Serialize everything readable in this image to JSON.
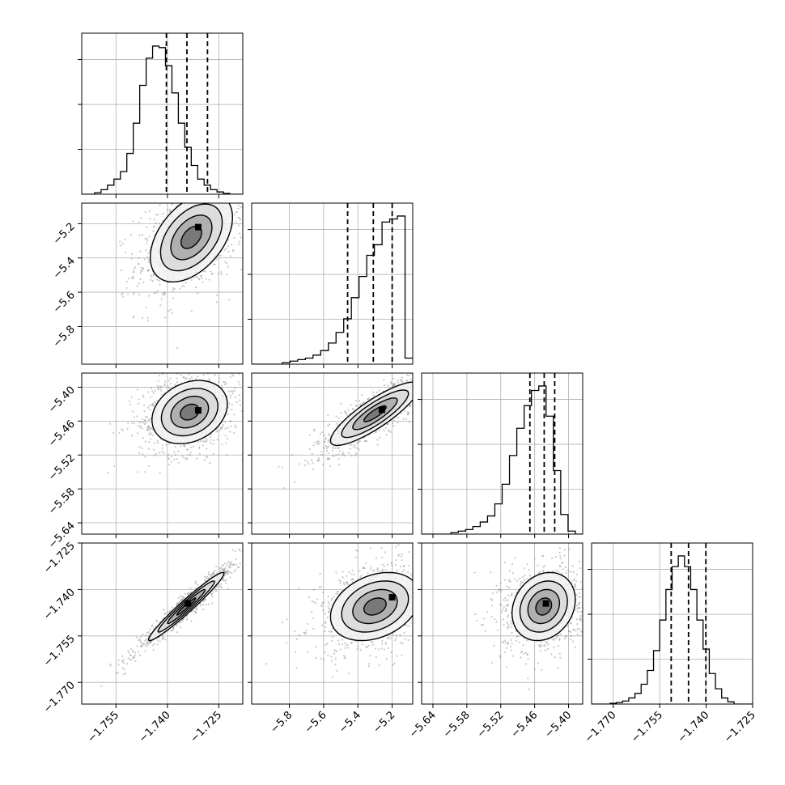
{
  "chart_data": {
    "type": "corner",
    "grid": true,
    "parameters": [
      {
        "range": [
          -1.765,
          -1.718
        ],
        "ticks": [
          -1.755,
          -1.74,
          -1.725
        ],
        "tick_labels": [
          "−1.755",
          "−1.740",
          "−1.725"
        ],
        "quantiles": [
          -1.7403,
          -1.7343,
          -1.7283
        ],
        "hist_range": [
          -1.765,
          -1.718
        ],
        "hist": [
          0,
          0,
          0.01,
          0.03,
          0.06,
          0.1,
          0.15,
          0.27,
          0.47,
          0.72,
          0.9,
          0.98,
          0.97,
          0.85,
          0.67,
          0.47,
          0.31,
          0.19,
          0.1,
          0.06,
          0.03,
          0.015,
          0.005,
          0,
          0
        ]
      },
      {
        "range": [
          -6.02,
          -5.08
        ],
        "ticks": [
          -5.8,
          -5.6,
          -5.4,
          -5.2
        ],
        "tick_labels": [
          "−5.8",
          "−5.6",
          "−5.4",
          "−5.2"
        ],
        "quantiles": [
          -5.46,
          -5.31,
          -5.2
        ],
        "hist_range": [
          -6.02,
          -5.08
        ],
        "hist": [
          0,
          0,
          0,
          0,
          0.01,
          0.02,
          0.03,
          0.04,
          0.06,
          0.09,
          0.14,
          0.21,
          0.3,
          0.44,
          0.58,
          0.72,
          0.79,
          0.94,
          0.96,
          0.98,
          0.04
        ]
      },
      {
        "range": [
          -5.66,
          -5.375
        ],
        "ticks": [
          -5.64,
          -5.58,
          -5.52,
          -5.46,
          -5.4
        ],
        "tick_labels": [
          "−5.64",
          "−5.58",
          "−5.52",
          "−5.46",
          "−5.40"
        ],
        "quantiles": [
          -5.4684,
          -5.4431,
          -5.4245
        ],
        "hist_range": [
          -5.66,
          -5.375
        ],
        "hist": [
          0,
          0,
          0,
          0,
          0.01,
          0.02,
          0.03,
          0.05,
          0.08,
          0.12,
          0.2,
          0.33,
          0.52,
          0.7,
          0.85,
          0.95,
          0.98,
          0.78,
          0.42,
          0.13,
          0.02,
          0
        ]
      },
      {
        "range": [
          -1.777,
          -1.725
        ],
        "ticks": [
          -1.77,
          -1.755,
          -1.74,
          -1.725
        ],
        "tick_labels": [
          "−1.770",
          "−1.755",
          "−1.740",
          "−1.725"
        ],
        "quantiles": [
          -1.7513,
          -1.7457,
          -1.7401
        ],
        "hist_range": [
          -1.777,
          -1.725
        ],
        "hist": [
          0,
          0,
          0,
          0.005,
          0.01,
          0.02,
          0.04,
          0.07,
          0.13,
          0.22,
          0.35,
          0.55,
          0.75,
          0.9,
          0.97,
          0.9,
          0.75,
          0.55,
          0.36,
          0.2,
          0.1,
          0.04,
          0.015,
          0,
          0,
          0
        ]
      }
    ],
    "pairs": [
      {
        "x": 0,
        "y": 1,
        "center": [
          -1.733,
          -5.28
        ],
        "spread": [
          0.006,
          0.13
        ],
        "corr": 0.45,
        "peak": [
          -1.731,
          -5.22
        ]
      },
      {
        "x": 0,
        "y": 2,
        "center": [
          -1.7335,
          -5.444
        ],
        "spread": [
          0.0055,
          0.028
        ],
        "corr": 0.25,
        "peak": [
          -1.731,
          -5.441
        ]
      },
      {
        "x": 1,
        "y": 2,
        "center": [
          -5.3,
          -5.447
        ],
        "spread": [
          0.13,
          0.028
        ],
        "corr": 0.85,
        "peak": [
          -5.26,
          -5.44
        ]
      },
      {
        "x": 0,
        "y": 3,
        "center": [
          -1.7345,
          -1.7455
        ],
        "spread": [
          0.0055,
          0.0055
        ],
        "corr": 0.97,
        "peak": [
          -1.734,
          -1.7445
        ]
      },
      {
        "x": 1,
        "y": 3,
        "center": [
          -5.3,
          -1.7455
        ],
        "spread": [
          0.13,
          0.0055
        ],
        "corr": 0.3,
        "peak": [
          -5.2,
          -1.7425
        ]
      },
      {
        "x": 2,
        "y": 3,
        "center": [
          -5.444,
          -1.7455
        ],
        "spread": [
          0.028,
          0.0055
        ],
        "corr": 0.2,
        "peak": [
          -5.44,
          -1.7445
        ]
      }
    ]
  }
}
